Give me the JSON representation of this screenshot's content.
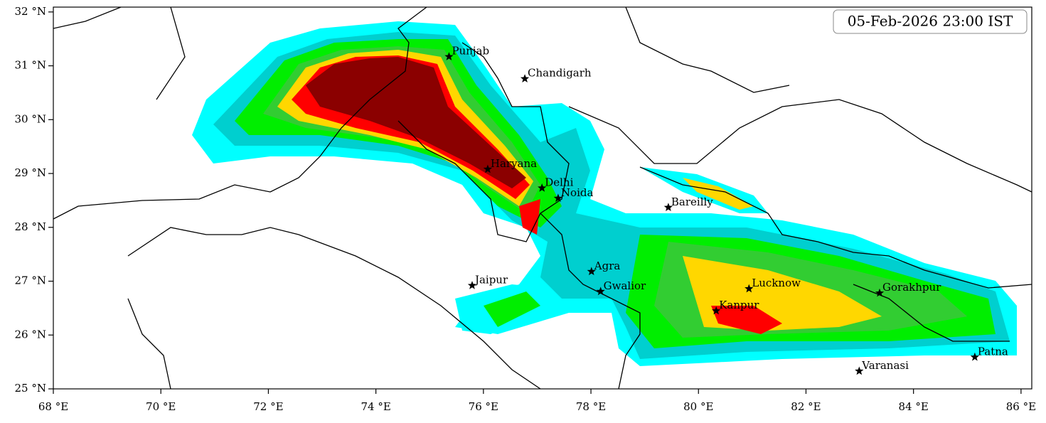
{
  "title": "05-Feb-2026 23:00 IST",
  "xlim": [
    68,
    86.2
  ],
  "ylim": [
    25,
    32.09
  ],
  "xticks": [
    {
      "value": 68,
      "label": "68 °E"
    },
    {
      "value": 70,
      "label": "70 °E"
    },
    {
      "value": 72,
      "label": "72 °E"
    },
    {
      "value": 74,
      "label": "74 °E"
    },
    {
      "value": 76,
      "label": "76 °E"
    },
    {
      "value": 78,
      "label": "78 °E"
    },
    {
      "value": 80,
      "label": "80 °E"
    },
    {
      "value": 82,
      "label": "82 °E"
    },
    {
      "value": 84,
      "label": "84 °E"
    },
    {
      "value": 86,
      "label": "86 °E"
    }
  ],
  "yticks": [
    {
      "value": 25,
      "label": "25 °N"
    },
    {
      "value": 26,
      "label": "26 °N"
    },
    {
      "value": 27,
      "label": "27 °N"
    },
    {
      "value": 28,
      "label": "28 °N"
    },
    {
      "value": 29,
      "label": "29 °N"
    },
    {
      "value": 30,
      "label": "30 °N"
    },
    {
      "value": 31,
      "label": "31 °N"
    },
    {
      "value": 32,
      "label": "32 °N"
    }
  ],
  "cities": [
    {
      "name": "Punjab",
      "lon": 75.36,
      "lat": 31.17
    },
    {
      "name": "Chandigarh",
      "lon": 76.77,
      "lat": 30.76
    },
    {
      "name": "Haryana",
      "lon": 76.08,
      "lat": 29.08
    },
    {
      "name": "Delhi",
      "lon": 77.09,
      "lat": 28.73
    },
    {
      "name": "Noida",
      "lon": 77.39,
      "lat": 28.54
    },
    {
      "name": "Bareilly",
      "lon": 79.44,
      "lat": 28.37
    },
    {
      "name": "Agra",
      "lon": 78.01,
      "lat": 27.18
    },
    {
      "name": "Jaipur",
      "lon": 75.79,
      "lat": 26.92
    },
    {
      "name": "Gwalior",
      "lon": 78.18,
      "lat": 26.81
    },
    {
      "name": "Lucknow",
      "lon": 80.94,
      "lat": 26.86
    },
    {
      "name": "Kanpur",
      "lon": 80.33,
      "lat": 26.45
    },
    {
      "name": "Gorakhpur",
      "lon": 83.37,
      "lat": 26.78
    },
    {
      "name": "Varanasi",
      "lon": 82.99,
      "lat": 25.33
    },
    {
      "name": "Patna",
      "lon": 85.14,
      "lat": 25.59
    }
  ]
}
